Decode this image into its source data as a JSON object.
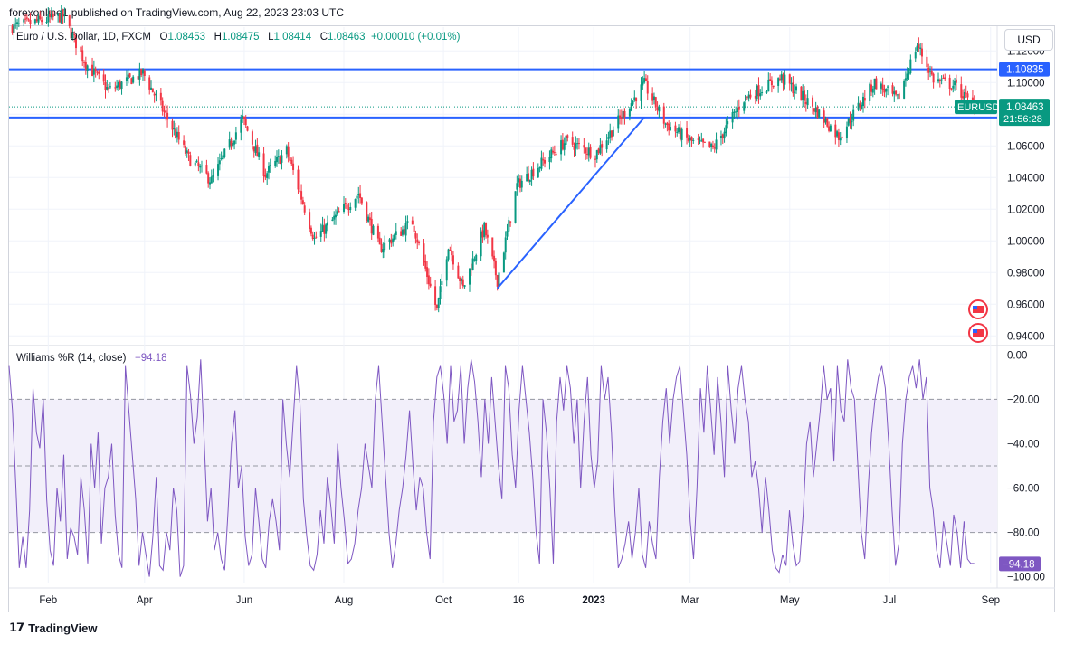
{
  "header": {
    "published": "forexonline1 published on TradingView.com, Aug 22, 2023 23:03 UTC"
  },
  "currency_button": "USD",
  "legend": {
    "symbol": "Euro / U.S. Dollar, 1D, FXCM",
    "o_label": "O",
    "o": "1.08453",
    "h_label": "H",
    "h": "1.08475",
    "l_label": "L",
    "l": "1.08414",
    "c_label": "C",
    "c": "1.08463",
    "change": "+0.00010 (+0.01%)"
  },
  "indicator_legend": {
    "name": "Williams %R (14, close)",
    "value": "−94.18"
  },
  "footer": {
    "brand": "TradingView"
  },
  "colors": {
    "up": "#089981",
    "down": "#f23645",
    "line": "#2962ff",
    "wr": "#7e57c2",
    "wr_band": "#f2effa"
  },
  "chart_data": [
    {
      "type": "candlestick",
      "symbol": "EURUSD",
      "interval": "1D",
      "ylim": [
        0.935,
        1.135
      ],
      "y_ticks": [
        "0.94000",
        "0.96000",
        "0.98000",
        "1.00000",
        "1.02000",
        "1.04000",
        "1.06000",
        "1.08000",
        "1.10000",
        "1.12000"
      ],
      "x_ticks": [
        "Feb",
        "Apr",
        "Jun",
        "Aug",
        "Oct",
        "16",
        "2023",
        "Mar",
        "May",
        "Jul",
        "Sep"
      ],
      "approx_path": [
        {
          "date": "2022-01-10",
          "close": 1.135
        },
        {
          "date": "2022-02-10",
          "close": 1.142
        },
        {
          "date": "2022-02-24",
          "close": 1.112
        },
        {
          "date": "2022-03-10",
          "close": 1.095
        },
        {
          "date": "2022-03-31",
          "close": 1.106
        },
        {
          "date": "2022-04-28",
          "close": 1.052
        },
        {
          "date": "2022-05-12",
          "close": 1.038
        },
        {
          "date": "2022-05-31",
          "close": 1.077
        },
        {
          "date": "2022-06-14",
          "close": 1.042
        },
        {
          "date": "2022-06-27",
          "close": 1.057
        },
        {
          "date": "2022-07-14",
          "close": 1.001
        },
        {
          "date": "2022-08-10",
          "close": 1.03
        },
        {
          "date": "2022-08-23",
          "close": 0.995
        },
        {
          "date": "2022-09-12",
          "close": 1.012
        },
        {
          "date": "2022-09-27",
          "close": 0.956
        },
        {
          "date": "2022-10-04",
          "close": 0.998
        },
        {
          "date": "2022-10-13",
          "close": 0.97
        },
        {
          "date": "2022-10-26",
          "close": 1.008
        },
        {
          "date": "2022-11-03",
          "close": 0.975
        },
        {
          "date": "2022-11-15",
          "close": 1.035
        },
        {
          "date": "2022-12-15",
          "close": 1.063
        },
        {
          "date": "2023-01-02",
          "close": 1.055
        },
        {
          "date": "2023-02-01",
          "close": 1.099
        },
        {
          "date": "2023-02-14",
          "close": 1.074
        },
        {
          "date": "2023-03-01",
          "close": 1.063
        },
        {
          "date": "2023-03-15",
          "close": 1.058
        },
        {
          "date": "2023-04-03",
          "close": 1.09
        },
        {
          "date": "2023-04-26",
          "close": 1.103
        },
        {
          "date": "2023-05-15",
          "close": 1.085
        },
        {
          "date": "2023-05-31",
          "close": 1.066
        },
        {
          "date": "2023-06-22",
          "close": 1.1
        },
        {
          "date": "2023-07-06",
          "close": 1.089
        },
        {
          "date": "2023-07-18",
          "close": 1.124
        },
        {
          "date": "2023-07-28",
          "close": 1.102
        },
        {
          "date": "2023-08-10",
          "close": 1.098
        },
        {
          "date": "2023-08-22",
          "close": 1.0846
        }
      ],
      "horizontal_lines": [
        {
          "price": 1.10835,
          "label": "1.10835"
        },
        {
          "price": 1.07794,
          "label": "1.07794"
        }
      ],
      "trend_line": [
        {
          "date": "2022-11-03",
          "price": 0.97
        },
        {
          "date": "2023-02-01",
          "price": 1.078
        }
      ],
      "last_price": {
        "symbol_label": "EURUSD",
        "price": "1.08463",
        "countdown": "21:56:28"
      }
    },
    {
      "type": "line",
      "name": "Williams %R (14, close)",
      "ylim": [
        -103,
        3
      ],
      "y_ticks": [
        "0.00",
        "−20.00",
        "−40.00",
        "−60.00",
        "−80.00",
        "−100.00"
      ],
      "bands": [
        -20,
        -50,
        -80
      ],
      "last_value": "−94.18",
      "values": [
        -5,
        -25,
        -60,
        -96,
        -82,
        -96,
        -70,
        -15,
        -35,
        -42,
        -20,
        -65,
        -88,
        -95,
        -60,
        -75,
        -45,
        -92,
        -78,
        -82,
        -90,
        -55,
        -70,
        -94,
        -40,
        -60,
        -35,
        -85,
        -60,
        -55,
        -40,
        -72,
        -90,
        -96,
        -5,
        -25,
        -45,
        -65,
        -95,
        -80,
        -90,
        -100,
        -82,
        -55,
        -95,
        -97,
        -80,
        -88,
        -60,
        -70,
        -100,
        -95,
        -5,
        -18,
        -40,
        -28,
        -2,
        -38,
        -75,
        -60,
        -88,
        -80,
        -92,
        -97,
        -70,
        -40,
        -25,
        -60,
        -50,
        -82,
        -95,
        -90,
        -60,
        -75,
        -92,
        -96,
        -75,
        -65,
        -75,
        -88,
        -20,
        -40,
        -55,
        -30,
        -5,
        -22,
        -65,
        -82,
        -95,
        -97,
        -90,
        -70,
        -85,
        -55,
        -68,
        -85,
        -40,
        -60,
        -75,
        -94,
        -92,
        -85,
        -70,
        -60,
        -40,
        -50,
        -60,
        -20,
        -5,
        -30,
        -55,
        -80,
        -96,
        -85,
        -70,
        -60,
        -45,
        -25,
        -50,
        -70,
        -55,
        -60,
        -80,
        -92,
        -30,
        -10,
        -5,
        -18,
        -40,
        -5,
        -30,
        -25,
        -5,
        -40,
        -15,
        -2,
        -12,
        -30,
        -55,
        -20,
        -40,
        -10,
        -30,
        -50,
        -65,
        -5,
        -15,
        -45,
        -60,
        -25,
        -5,
        -20,
        -35,
        -55,
        -80,
        -94,
        -20,
        -35,
        -60,
        -94,
        -30,
        -10,
        -25,
        -5,
        -15,
        -40,
        -20,
        -60,
        -30,
        -10,
        -45,
        -60,
        -48,
        -5,
        -20,
        -10,
        -35,
        -70,
        -96,
        -92,
        -85,
        -75,
        -92,
        -80,
        -60,
        -90,
        -96,
        -75,
        -85,
        -92,
        -55,
        -30,
        -15,
        -40,
        -20,
        -10,
        -5,
        -25,
        -45,
        -75,
        -92,
        -60,
        -15,
        -35,
        -5,
        -25,
        -45,
        -10,
        -30,
        -55,
        -5,
        -25,
        -40,
        -15,
        -5,
        -20,
        -30,
        -55,
        -48,
        -60,
        -80,
        -55,
        -70,
        -88,
        -96,
        -98,
        -90,
        -95,
        -70,
        -85,
        -95,
        -93,
        -72,
        -40,
        -30,
        -55,
        -40,
        -25,
        -5,
        -20,
        -15,
        -48,
        -5,
        -25,
        -30,
        -2,
        -15,
        -20,
        -50,
        -80,
        -92,
        -60,
        -35,
        -20,
        -10,
        -5,
        -15,
        -40,
        -70,
        -95,
        -85,
        -40,
        -20,
        -10,
        -5,
        -15,
        -2,
        -20,
        -10,
        -60,
        -70,
        -88,
        -96,
        -75,
        -85,
        -95,
        -72,
        -80,
        -96,
        -75,
        -92,
        -94,
        -94
      ]
    }
  ]
}
